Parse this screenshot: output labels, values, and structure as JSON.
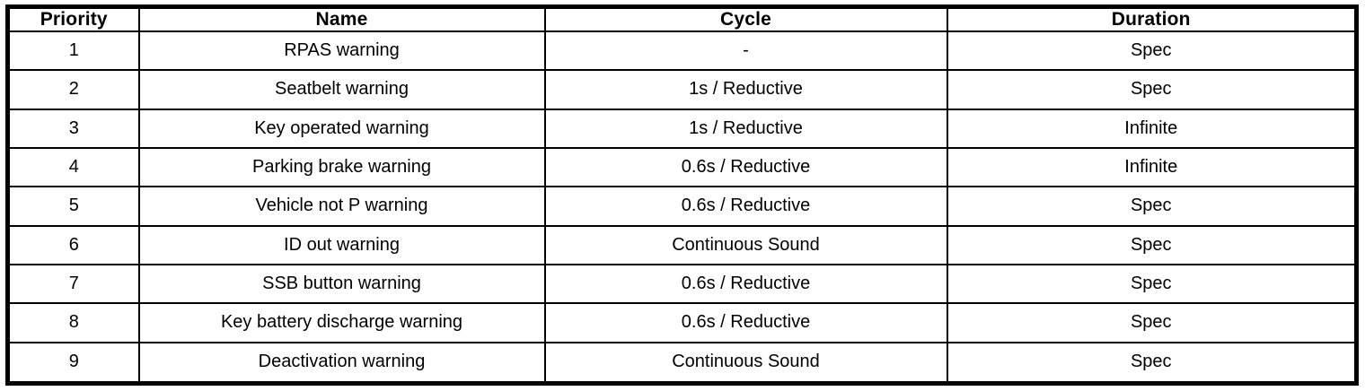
{
  "table": {
    "columns": [
      "Priority",
      "Name",
      "Cycle",
      "Duration"
    ],
    "rows": [
      [
        "1",
        "RPAS warning",
        "-",
        "Spec"
      ],
      [
        "2",
        "Seatbelt warning",
        "1s / Reductive",
        "Spec"
      ],
      [
        "3",
        "Key operated warning",
        "1s / Reductive",
        "Infinite"
      ],
      [
        "4",
        "Parking brake warning",
        "0.6s / Reductive",
        "Infinite"
      ],
      [
        "5",
        "Vehicle not P warning",
        "0.6s / Reductive",
        "Spec"
      ],
      [
        "6",
        "ID out warning",
        "Continuous Sound",
        "Spec"
      ],
      [
        "7",
        "SSB button warning",
        "0.6s / Reductive",
        "Spec"
      ],
      [
        "8",
        "Key battery discharge warning",
        "0.6s / Reductive",
        "Spec"
      ],
      [
        "9",
        "Deactivation warning",
        "Continuous Sound",
        "Spec"
      ]
    ],
    "colors": {
      "border": "#000000",
      "text": "#000000",
      "background": "#ffffff"
    }
  }
}
